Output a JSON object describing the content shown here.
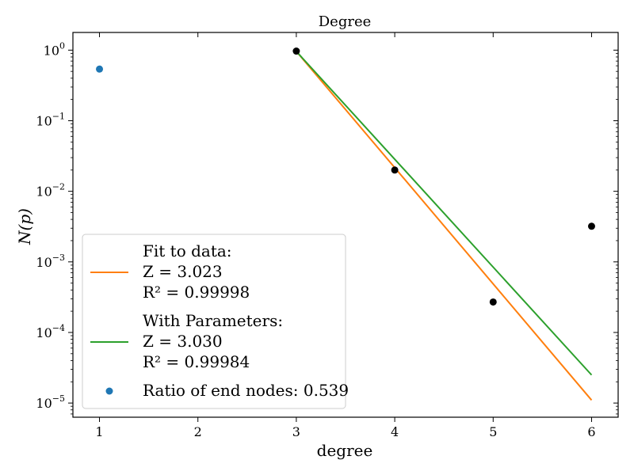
{
  "chart_data": {
    "type": "scatter",
    "title": "Degree",
    "xlabel": "degree",
    "ylabel": "N(p)",
    "xlim": [
      0.73,
      6.27
    ],
    "ylim": [
      6.3e-06,
      1.78
    ],
    "yscale": "log",
    "x_ticks": [
      1,
      2,
      3,
      4,
      5,
      6
    ],
    "x_tick_labels": [
      "1",
      "2",
      "3",
      "4",
      "5",
      "6"
    ],
    "y_ticks": [
      1e-05,
      0.0001,
      0.001,
      0.01,
      0.1,
      1
    ],
    "y_tick_labels": [
      {
        "base": "10",
        "exp": "−5"
      },
      {
        "base": "10",
        "exp": "−4"
      },
      {
        "base": "10",
        "exp": "−3"
      },
      {
        "base": "10",
        "exp": "−2"
      },
      {
        "base": "10",
        "exp": "−1"
      },
      {
        "base": "10",
        "exp": "0"
      }
    ],
    "grid": false,
    "legend_position": "lower-left",
    "series": [
      {
        "kind": "scatter",
        "color": "#1f77b4",
        "x": [
          1
        ],
        "y": [
          0.539
        ],
        "legend": [
          "Ratio of end nodes: 0.539"
        ]
      },
      {
        "kind": "scatter",
        "color": "#000000",
        "x": [
          3,
          4,
          5,
          6
        ],
        "y": [
          0.97,
          0.02,
          0.00027,
          0.0032
        ]
      },
      {
        "kind": "line",
        "color": "#ff7f0e",
        "x": [
          3,
          6
        ],
        "y": [
          0.96,
          1.1e-05
        ],
        "legend": [
          "Fit to data:",
          "Z = 3.023",
          "R² = 0.99998"
        ]
      },
      {
        "kind": "line",
        "color": "#2ca02c",
        "x": [
          3,
          6
        ],
        "y": [
          0.96,
          2.5e-05
        ],
        "legend": [
          "With Parameters:",
          "Z = 3.030",
          "R² = 0.99984"
        ]
      }
    ],
    "legend_order": [
      2,
      3,
      0
    ]
  }
}
